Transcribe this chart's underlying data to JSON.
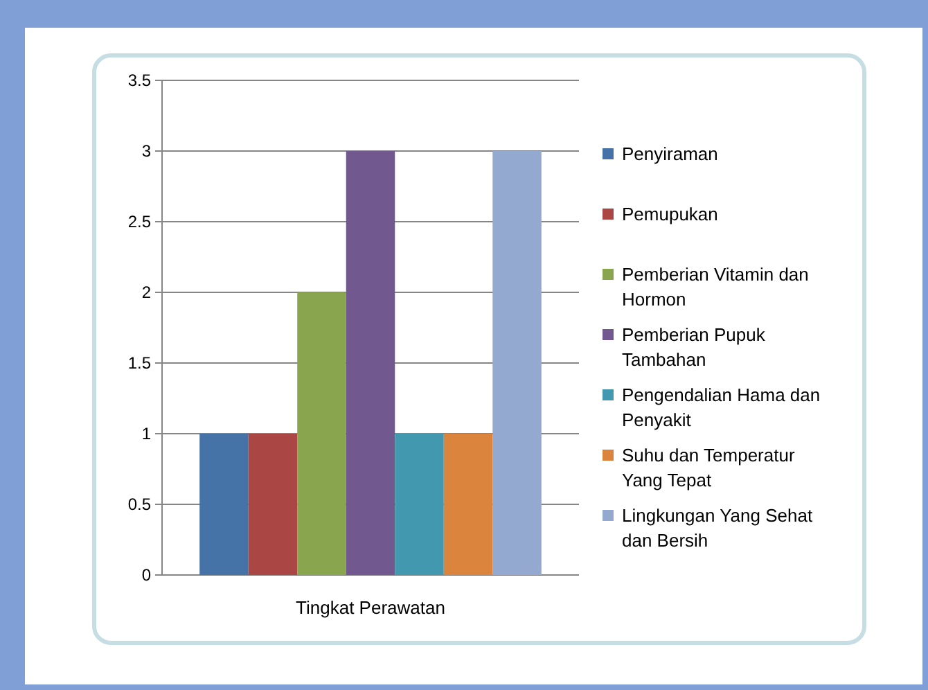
{
  "chart_data": {
    "type": "bar",
    "categories": [
      "Tingkat Perawatan"
    ],
    "series": [
      {
        "name": "Penyiraman",
        "color": "#4572a7",
        "values": [
          1
        ]
      },
      {
        "name": "Pemupukan",
        "color": "#aa4643",
        "values": [
          1
        ]
      },
      {
        "name": "Pemberian Vitamin dan Hormon",
        "color": "#89a54e",
        "values": [
          2
        ]
      },
      {
        "name": "Pemberian Pupuk Tambahan",
        "color": "#71588f",
        "values": [
          3
        ]
      },
      {
        "name": "Pengendalian Hama dan Penyakit",
        "color": "#4198af",
        "values": [
          1
        ]
      },
      {
        "name": "Suhu dan Temperatur Yang Tepat",
        "color": "#db843d",
        "values": [
          1
        ]
      },
      {
        "name": "Lingkungan Yang Sehat dan Bersih",
        "color": "#93a9cf",
        "values": [
          3
        ]
      }
    ],
    "ylim": [
      0,
      3.5
    ],
    "yticks": [
      0,
      0.5,
      1,
      1.5,
      2,
      2.5,
      3,
      3.5
    ],
    "grid": "y",
    "legend": "right"
  }
}
